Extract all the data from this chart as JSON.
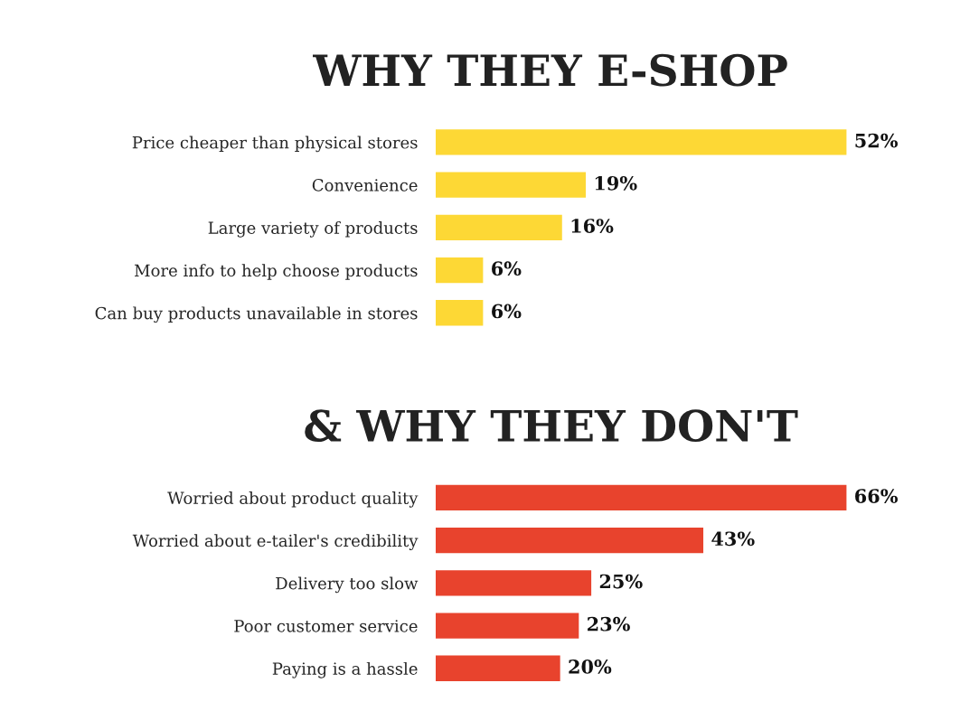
{
  "chart_data": [
    {
      "type": "bar",
      "orientation": "horizontal",
      "title": "WHY THEY E-SHOP",
      "tick_labels": "y",
      "color": "#fdd835",
      "categories": [
        "Price cheaper than physical stores",
        "Convenience",
        "Large variety of products",
        "More info to help choose products",
        "Can buy products unavailable in stores"
      ],
      "values": [
        52,
        19,
        16,
        6,
        6
      ],
      "value_labels": [
        "52%",
        "19%",
        "16%",
        "6%",
        "6%"
      ]
    },
    {
      "type": "bar",
      "orientation": "horizontal",
      "title": "& WHY THEY DON'T",
      "tick_labels": "y",
      "color": "#e8432d",
      "categories": [
        "Worried about product quality",
        "Worried about e-tailer's credibility",
        "Delivery too slow",
        "Poor customer service",
        "Paying is a hassle"
      ],
      "values": [
        66,
        43,
        25,
        23,
        20
      ],
      "value_labels": [
        "66%",
        "43%",
        "25%",
        "23%",
        "20%"
      ]
    }
  ]
}
